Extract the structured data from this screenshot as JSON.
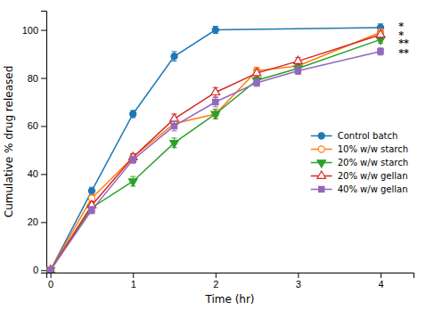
{
  "chart_data": {
    "type": "line",
    "xlabel": "Time (hr)",
    "ylabel": "Cumulative % drug released",
    "xlim": [
      -0.05,
      4.4
    ],
    "ylim": [
      -1,
      108
    ],
    "xticks": [
      0,
      1,
      2,
      3,
      4
    ],
    "yticks": [
      0,
      20,
      40,
      60,
      80,
      100
    ],
    "legend": "right",
    "series": [
      {
        "name": "Control batch",
        "marker": "circle",
        "x": [
          0,
          0.5,
          1,
          1.5,
          2,
          4
        ],
        "values": [
          0,
          33,
          65,
          89,
          100,
          101
        ],
        "errors": [
          0,
          1.5,
          1.5,
          2.0,
          1.5,
          1.5
        ]
      },
      {
        "name": "10% w/w starch",
        "marker": "circle-open",
        "x": [
          0,
          0.5,
          1,
          1.5,
          2,
          2.5,
          3,
          4
        ],
        "values": [
          0,
          30,
          47,
          61,
          65,
          83,
          85,
          99
        ],
        "errors": [
          0,
          1.5,
          1.5,
          1.5,
          2.0,
          1.5,
          1.5,
          1.5
        ]
      },
      {
        "name": "20% w/w starch",
        "marker": "triangle-down",
        "x": [
          0,
          0.5,
          1,
          1.5,
          2,
          2.5,
          3,
          4
        ],
        "values": [
          0,
          26,
          37,
          53,
          65,
          79,
          84,
          96
        ],
        "errors": [
          0,
          1.5,
          2.0,
          2.0,
          2.0,
          1.5,
          1.5,
          1.5
        ]
      },
      {
        "name": "20% w/w gellan",
        "marker": "triangle-up-open",
        "x": [
          0,
          0.5,
          1,
          1.5,
          2,
          2.5,
          3,
          4
        ],
        "values": [
          0,
          27,
          47,
          63,
          74,
          82,
          87,
          98
        ],
        "errors": [
          0,
          1.5,
          1.5,
          2.0,
          2.0,
          1.5,
          1.5,
          1.5
        ]
      },
      {
        "name": "40% w/w gellan",
        "marker": "square",
        "x": [
          0,
          0.5,
          1,
          1.5,
          2,
          2.5,
          3,
          4
        ],
        "values": [
          0,
          25,
          46,
          60,
          70,
          78,
          83,
          91
        ],
        "errors": [
          0,
          1.5,
          1.5,
          2.0,
          2.0,
          1.5,
          1.5,
          1.5
        ]
      }
    ],
    "annotations": [
      {
        "x": 4.22,
        "y": 101.5,
        "text": "*"
      },
      {
        "x": 4.22,
        "y": 98.0,
        "text": "*"
      },
      {
        "x": 4.22,
        "y": 94.5,
        "text": "**"
      },
      {
        "x": 4.22,
        "y": 90.5,
        "text": "**"
      }
    ]
  }
}
